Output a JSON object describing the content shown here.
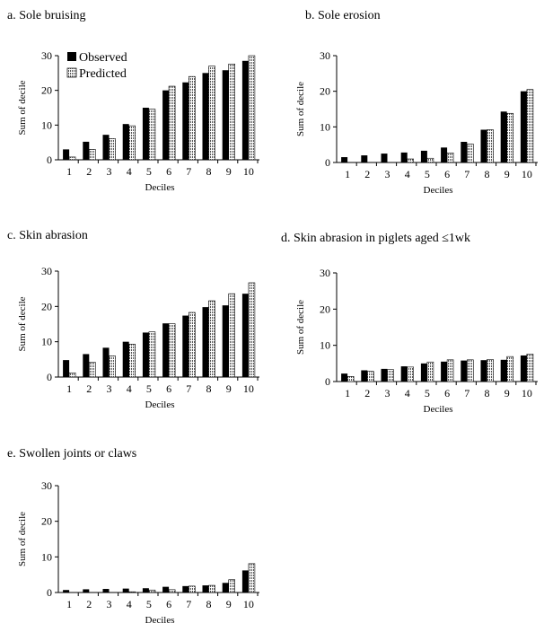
{
  "chart_data": [
    {
      "type": "bar",
      "title": "a. Sole bruising",
      "xlabel": "Deciles",
      "ylabel": "Sum of decile",
      "ylim": [
        0,
        30
      ],
      "yticks": [
        "0",
        "10",
        "20",
        "30"
      ],
      "categories": [
        "1",
        "2",
        "3",
        "4",
        "5",
        "6",
        "7",
        "8",
        "9",
        "10"
      ],
      "legend": "top-left",
      "series": [
        {
          "name": "Observed",
          "values": [
            3,
            5.2,
            7.2,
            10.3,
            15,
            20,
            22.3,
            25,
            25.8,
            28.5
          ]
        },
        {
          "name": "Predicted",
          "values": [
            0.8,
            3,
            6.1,
            9.8,
            14.6,
            21.2,
            24,
            27,
            27.6,
            30
          ]
        }
      ]
    },
    {
      "type": "bar",
      "title": "b. Sole erosion",
      "xlabel": "Deciles",
      "ylabel": "Sum of decile",
      "ylim": [
        0,
        30
      ],
      "yticks": [
        "0",
        "10",
        "20",
        "30"
      ],
      "categories": [
        "1",
        "2",
        "3",
        "4",
        "5",
        "6",
        "7",
        "8",
        "9",
        "10"
      ],
      "series": [
        {
          "values": [
            1.5,
            2,
            2.5,
            2.8,
            3.3,
            4.2,
            5.8,
            9.2,
            14.3,
            20
          ]
        },
        {
          "values": [
            0,
            0,
            0,
            1,
            1.2,
            2.7,
            5.2,
            9.2,
            13.8,
            20.5
          ]
        }
      ]
    },
    {
      "type": "bar",
      "title": "c. Skin abrasion",
      "xlabel": "Deciles",
      "ylabel": "Sum of decile",
      "ylim": [
        0,
        30
      ],
      "yticks": [
        "0",
        "10",
        "20",
        "30"
      ],
      "categories": [
        "1",
        "2",
        "3",
        "4",
        "5",
        "6",
        "7",
        "8",
        "9",
        "10"
      ],
      "series": [
        {
          "values": [
            4.8,
            6.5,
            8.3,
            10,
            12.6,
            15.2,
            17.4,
            19.8,
            20.3,
            23.6
          ]
        },
        {
          "values": [
            1.2,
            4.2,
            6,
            9.3,
            12.8,
            15.1,
            18.3,
            21.6,
            23.6,
            26.7
          ]
        }
      ]
    },
    {
      "type": "bar",
      "title": "d. Skin abrasion in piglets aged ≤1wk",
      "xlabel": "Deciles",
      "ylabel": "Sum of decile",
      "ylim": [
        0,
        30
      ],
      "yticks": [
        "0",
        "10",
        "20",
        "30"
      ],
      "categories": [
        "1",
        "2",
        "3",
        "4",
        "5",
        "6",
        "7",
        "8",
        "9",
        "10"
      ],
      "series": [
        {
          "values": [
            2.2,
            3.1,
            3.5,
            4.2,
            5,
            5.5,
            5.8,
            5.9,
            6,
            7.2
          ]
        },
        {
          "values": [
            1.4,
            2.8,
            3.3,
            4,
            5.4,
            6,
            6,
            6.1,
            6.9,
            7.6
          ]
        }
      ]
    },
    {
      "type": "bar",
      "title": "e. Swollen joints or claws",
      "xlabel": "Deciles",
      "ylabel": "Sum of decile",
      "ylim": [
        0,
        30
      ],
      "yticks": [
        "0",
        "10",
        "20",
        "30"
      ],
      "categories": [
        "1",
        "2",
        "3",
        "4",
        "5",
        "6",
        "7",
        "8",
        "9",
        "10"
      ],
      "series": [
        {
          "values": [
            0.7,
            0.9,
            1,
            1.1,
            1.2,
            1.6,
            1.8,
            2,
            2.7,
            6.2
          ]
        },
        {
          "values": [
            0,
            0,
            0,
            0.2,
            0.7,
            0.8,
            1.8,
            2,
            3.6,
            8.1
          ]
        }
      ]
    }
  ]
}
